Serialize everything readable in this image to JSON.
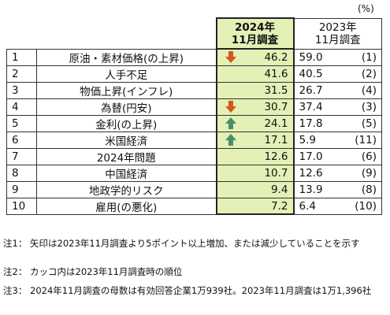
{
  "unit": "(%)",
  "header": {
    "col_2024_line1": "2024年",
    "col_2024_line2": "11月調査",
    "col_2023_line1": "2023年",
    "col_2023_line2": "11月調査"
  },
  "rows": [
    {
      "rank": "1",
      "item": "原油・素材価格(の上昇)",
      "v2024": "46.2",
      "v2023": "59.0",
      "prev": "(1)",
      "arrow": "down"
    },
    {
      "rank": "2",
      "item": "人手不足",
      "v2024": "41.6",
      "v2023": "40.5",
      "prev": "(2)",
      "arrow": ""
    },
    {
      "rank": "3",
      "item": "物価上昇(インフレ)",
      "v2024": "31.5",
      "v2023": "26.7",
      "prev": "(4)",
      "arrow": ""
    },
    {
      "rank": "4",
      "item": "為替(円安)",
      "v2024": "30.7",
      "v2023": "37.4",
      "prev": "(3)",
      "arrow": "down"
    },
    {
      "rank": "5",
      "item": "金利(の上昇)",
      "v2024": "24.1",
      "v2023": "17.8",
      "prev": "(5)",
      "arrow": "up"
    },
    {
      "rank": "6",
      "item": "米国経済",
      "v2024": "17.1",
      "v2023": "5.9",
      "prev": "(11)",
      "arrow": "up"
    },
    {
      "rank": "7",
      "item": "2024年問題",
      "v2024": "12.6",
      "v2023": "17.0",
      "prev": "(6)",
      "arrow": ""
    },
    {
      "rank": "8",
      "item": "中国経済",
      "v2024": "10.7",
      "v2023": "12.6",
      "prev": "(9)",
      "arrow": ""
    },
    {
      "rank": "9",
      "item": "地政学的リスク",
      "v2024": "9.4",
      "v2023": "13.9",
      "prev": "(8)",
      "arrow": ""
    },
    {
      "rank": "10",
      "item": "雇用(の悪化)",
      "v2024": "7.2",
      "v2023": "6.4",
      "prev": "(10)",
      "arrow": ""
    }
  ],
  "notes": [
    {
      "key": "注1：",
      "text": "矢印は2023年11月調査より5ポイント以上増加、または減少していることを示す"
    },
    {
      "key": "注2：",
      "text": "カッコ内は2023年11月調査時の順位"
    },
    {
      "key": "注3：",
      "text": "2024年11月調査の母数は有効回答企業1万939社。2023年11月調査は1万1,396社"
    }
  ],
  "colors": {
    "highlight_2024": "#e3f0b6",
    "arrow_down": "#d9531e",
    "arrow_up": "#4a8f6a"
  }
}
